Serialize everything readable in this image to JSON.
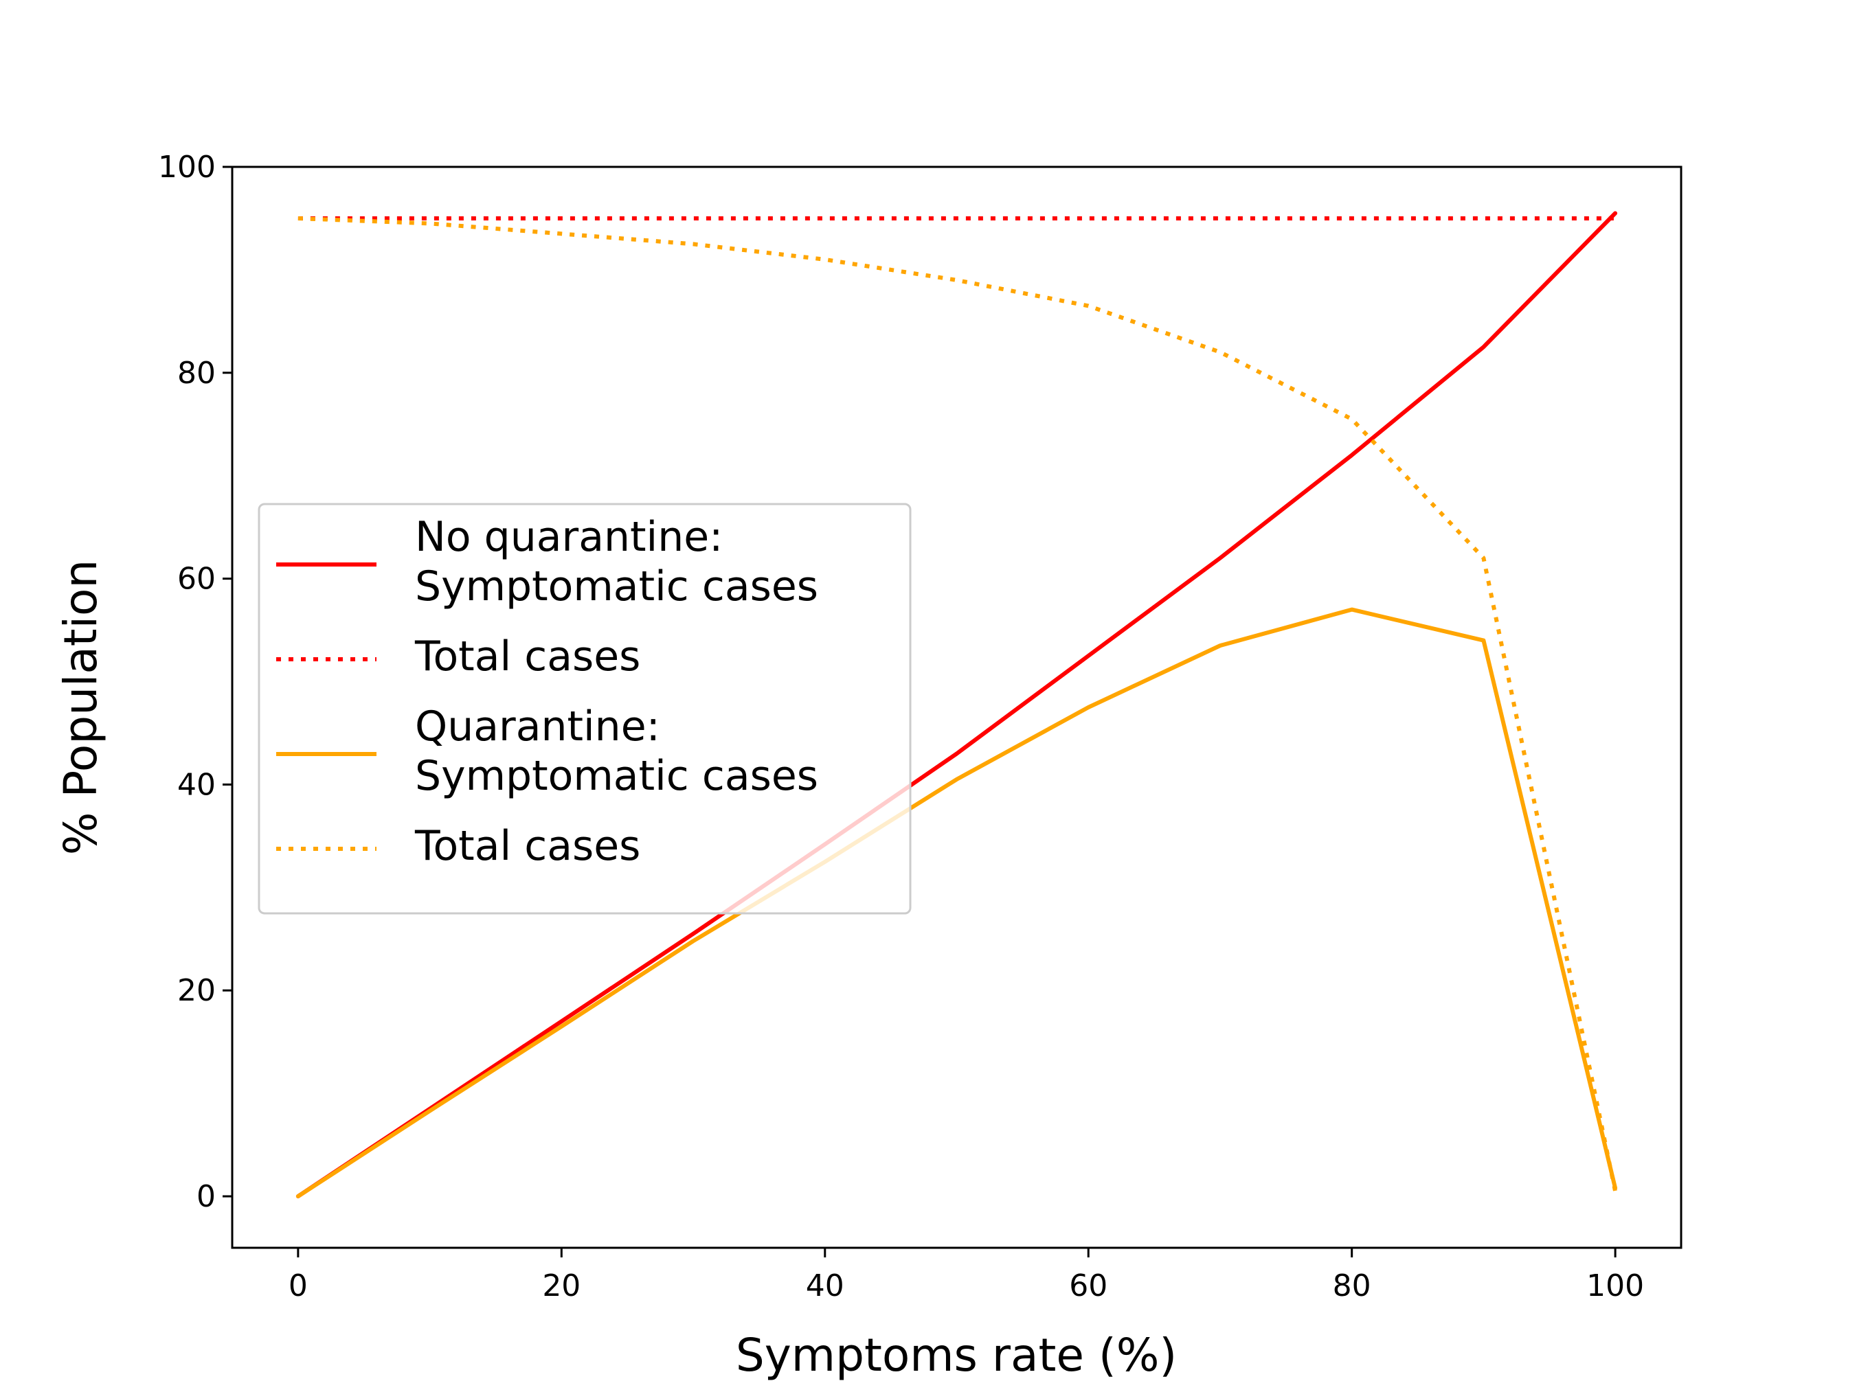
{
  "chart_data": {
    "type": "line",
    "title": "",
    "xlabel": "Symptoms rate (%)",
    "ylabel": "% Population",
    "xlim": [
      -5,
      105
    ],
    "ylim": [
      -5,
      100
    ],
    "x_ticks": [
      0,
      20,
      40,
      60,
      80,
      100
    ],
    "y_ticks": [
      0,
      20,
      40,
      60,
      80,
      100
    ],
    "grid": false,
    "legend_position": "center-left",
    "x": [
      0,
      10,
      20,
      30,
      40,
      50,
      60,
      70,
      80,
      90,
      100
    ],
    "series": [
      {
        "name": "No quarantine: Symptomatic cases",
        "color": "#ff0000",
        "style": "solid",
        "values": [
          0,
          8.5,
          17.0,
          25.5,
          34.2,
          43.0,
          52.5,
          62.0,
          72.0,
          82.5,
          95.5
        ]
      },
      {
        "name": "No quarantine: Total cases",
        "color": "#ff0000",
        "style": "dotted",
        "values": [
          95.0,
          95.0,
          95.0,
          95.0,
          95.0,
          95.0,
          95.0,
          95.0,
          95.0,
          95.0,
          95.0
        ]
      },
      {
        "name": "Quarantine: Symptomatic cases",
        "color": "#ffa500",
        "style": "solid",
        "values": [
          0,
          8.3,
          16.5,
          24.8,
          32.5,
          40.5,
          47.5,
          53.5,
          57.0,
          54.0,
          0.8
        ]
      },
      {
        "name": "Quarantine: Total cases",
        "color": "#ffa500",
        "style": "dotted",
        "values": [
          95.0,
          94.5,
          93.5,
          92.5,
          91.0,
          89.0,
          86.5,
          82.0,
          75.5,
          62.0,
          0.5
        ]
      }
    ],
    "legend": [
      {
        "lines": [
          "No quarantine:",
          "Symptomatic cases"
        ],
        "series": 0
      },
      {
        "lines": [
          "Total cases"
        ],
        "series": 1
      },
      {
        "lines": [
          "Quarantine:",
          "Symptomatic cases"
        ],
        "series": 2
      },
      {
        "lines": [
          "Total cases"
        ],
        "series": 3
      }
    ]
  }
}
